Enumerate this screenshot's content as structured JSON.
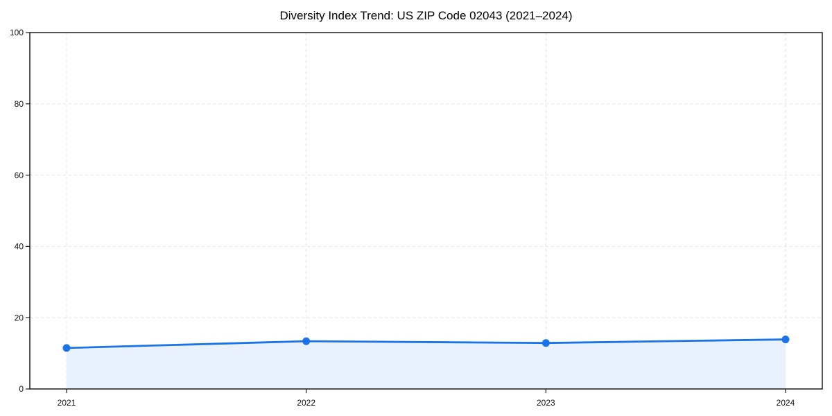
{
  "title": "Diversity Index Trend: US ZIP Code 02043 (2021–2024)",
  "chart_data": {
    "type": "line",
    "title": "Diversity Index Trend: US ZIP Code 02043 (2021–2024)",
    "categories": [
      "2021",
      "2022",
      "2023",
      "2024"
    ],
    "series": [
      {
        "name": "Diversity Index",
        "values": [
          11.5,
          13.4,
          12.9,
          13.9
        ]
      }
    ],
    "xlabel": "",
    "ylabel": "",
    "ylim": [
      0,
      100
    ],
    "yticks": [
      0,
      20,
      40,
      60,
      80,
      100
    ],
    "grid": true,
    "grid_style": "dashed",
    "area_fill": true,
    "markers": true,
    "legend_position": "none",
    "colors": {
      "line": "#1a73e8",
      "marker": "#1a73e8",
      "area": "#e9f1fd",
      "grid": "#e2e2e2",
      "axis": "#1a1a1a",
      "text": "#111111",
      "background": "#ffffff"
    }
  }
}
